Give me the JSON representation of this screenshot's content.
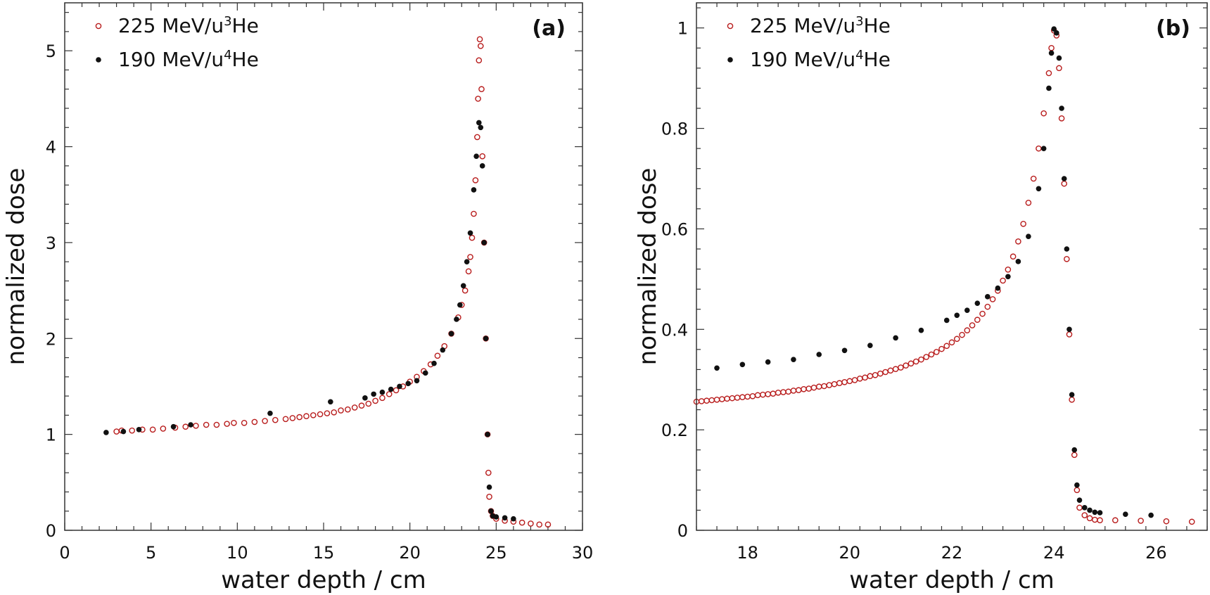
{
  "colors": {
    "he3": "#b81c1c",
    "he4": "#111111",
    "axis": "#333333"
  },
  "chart_data": [
    {
      "type": "scatter",
      "panel_label": "(a)",
      "xlabel": "water depth / cm",
      "ylabel": "normalized dose",
      "xlim": [
        0,
        30
      ],
      "ylim": [
        0,
        5.5
      ],
      "xticks": [
        0,
        5,
        10,
        15,
        20,
        25,
        30
      ],
      "yticks": [
        0,
        1,
        2,
        3,
        4,
        5
      ],
      "grid": false,
      "legend_position": "top-left",
      "legend": [
        {
          "label_main": "225 MeV/u",
          "label_sup": "3",
          "label_tail": "He",
          "marker": "open-circle"
        },
        {
          "label_main": "190 MeV/u",
          "label_sup": "4",
          "label_tail": "He",
          "marker": "filled-circle"
        }
      ],
      "series": [
        {
          "name": "225 MeV/u 3He",
          "marker": "open-circle",
          "points": [
            [
              3.0,
              1.03
            ],
            [
              3.3,
              1.04
            ],
            [
              3.9,
              1.04
            ],
            [
              4.5,
              1.05
            ],
            [
              5.1,
              1.05
            ],
            [
              5.7,
              1.06
            ],
            [
              6.4,
              1.07
            ],
            [
              7.0,
              1.08
            ],
            [
              7.6,
              1.09
            ],
            [
              8.2,
              1.1
            ],
            [
              8.8,
              1.1
            ],
            [
              9.4,
              1.11
            ],
            [
              9.8,
              1.12
            ],
            [
              10.4,
              1.12
            ],
            [
              11.0,
              1.13
            ],
            [
              11.6,
              1.14
            ],
            [
              12.2,
              1.15
            ],
            [
              12.8,
              1.16
            ],
            [
              13.2,
              1.17
            ],
            [
              13.6,
              1.18
            ],
            [
              14.0,
              1.19
            ],
            [
              14.4,
              1.2
            ],
            [
              14.8,
              1.21
            ],
            [
              15.2,
              1.22
            ],
            [
              15.6,
              1.23
            ],
            [
              16.0,
              1.25
            ],
            [
              16.4,
              1.26
            ],
            [
              16.8,
              1.28
            ],
            [
              17.2,
              1.3
            ],
            [
              17.6,
              1.32
            ],
            [
              18.0,
              1.35
            ],
            [
              18.4,
              1.38
            ],
            [
              18.8,
              1.42
            ],
            [
              19.2,
              1.46
            ],
            [
              19.6,
              1.5
            ],
            [
              20.0,
              1.55
            ],
            [
              20.4,
              1.6
            ],
            [
              20.8,
              1.66
            ],
            [
              21.2,
              1.73
            ],
            [
              21.6,
              1.82
            ],
            [
              22.0,
              1.92
            ],
            [
              22.4,
              2.05
            ],
            [
              22.8,
              2.22
            ],
            [
              23.0,
              2.35
            ],
            [
              23.2,
              2.5
            ],
            [
              23.4,
              2.7
            ],
            [
              23.5,
              2.85
            ],
            [
              23.6,
              3.05
            ],
            [
              23.7,
              3.3
            ],
            [
              23.8,
              3.65
            ],
            [
              23.9,
              4.1
            ],
            [
              23.95,
              4.5
            ],
            [
              24.0,
              4.9
            ],
            [
              24.05,
              5.12
            ],
            [
              24.1,
              5.05
            ],
            [
              24.15,
              4.6
            ],
            [
              24.2,
              3.9
            ],
            [
              24.3,
              3.0
            ],
            [
              24.4,
              2.0
            ],
            [
              24.5,
              1.0
            ],
            [
              24.55,
              0.6
            ],
            [
              24.6,
              0.35
            ],
            [
              24.7,
              0.2
            ],
            [
              24.8,
              0.15
            ],
            [
              25.0,
              0.12
            ],
            [
              25.5,
              0.1
            ],
            [
              26.0,
              0.09
            ],
            [
              26.5,
              0.08
            ],
            [
              27.0,
              0.07
            ],
            [
              27.5,
              0.06
            ],
            [
              28.0,
              0.06
            ]
          ]
        },
        {
          "name": "190 MeV/u 4He",
          "marker": "filled-circle",
          "points": [
            [
              2.4,
              1.02
            ],
            [
              3.4,
              1.03
            ],
            [
              4.3,
              1.05
            ],
            [
              6.3,
              1.08
            ],
            [
              7.3,
              1.1
            ],
            [
              11.9,
              1.22
            ],
            [
              15.4,
              1.34
            ],
            [
              17.4,
              1.38
            ],
            [
              17.9,
              1.42
            ],
            [
              18.4,
              1.44
            ],
            [
              18.9,
              1.47
            ],
            [
              19.4,
              1.5
            ],
            [
              19.9,
              1.53
            ],
            [
              20.4,
              1.56
            ],
            [
              20.9,
              1.64
            ],
            [
              21.4,
              1.74
            ],
            [
              21.9,
              1.88
            ],
            [
              22.4,
              2.05
            ],
            [
              22.7,
              2.2
            ],
            [
              22.9,
              2.35
            ],
            [
              23.1,
              2.55
            ],
            [
              23.3,
              2.8
            ],
            [
              23.5,
              3.1
            ],
            [
              23.7,
              3.55
            ],
            [
              23.85,
              3.9
            ],
            [
              24.0,
              4.25
            ],
            [
              24.1,
              4.2
            ],
            [
              24.2,
              3.8
            ],
            [
              24.3,
              3.0
            ],
            [
              24.4,
              2.0
            ],
            [
              24.5,
              1.0
            ],
            [
              24.6,
              0.45
            ],
            [
              24.7,
              0.2
            ],
            [
              24.8,
              0.15
            ],
            [
              25.0,
              0.14
            ],
            [
              25.5,
              0.13
            ],
            [
              26.0,
              0.12
            ]
          ]
        }
      ]
    },
    {
      "type": "scatter",
      "panel_label": "(b)",
      "xlabel": "water depth / cm",
      "ylabel": "normalized dose",
      "xlim": [
        17,
        27
      ],
      "ylim": [
        0,
        1.05
      ],
      "xticks": [
        18,
        20,
        22,
        24,
        26
      ],
      "yticks": [
        0,
        0.2,
        0.4,
        0.6,
        0.8,
        1
      ],
      "grid": false,
      "legend_position": "top-left",
      "legend": [
        {
          "label_main": "225 MeV/u",
          "label_sup": "3",
          "label_tail": "He",
          "marker": "open-circle"
        },
        {
          "label_main": "190 MeV/u",
          "label_sup": "4",
          "label_tail": "He",
          "marker": "filled-circle"
        }
      ],
      "series": [
        {
          "name": "225 MeV/u 3He",
          "marker": "open-circle",
          "points": [
            [
              17.0,
              0.256
            ],
            [
              17.1,
              0.257
            ],
            [
              17.2,
              0.258
            ],
            [
              17.3,
              0.259
            ],
            [
              17.4,
              0.26
            ],
            [
              17.5,
              0.261
            ],
            [
              17.6,
              0.262
            ],
            [
              17.7,
              0.263
            ],
            [
              17.8,
              0.264
            ],
            [
              17.9,
              0.265
            ],
            [
              18.0,
              0.266
            ],
            [
              18.1,
              0.267
            ],
            [
              18.2,
              0.269
            ],
            [
              18.3,
              0.27
            ],
            [
              18.4,
              0.271
            ],
            [
              18.5,
              0.272
            ],
            [
              18.6,
              0.274
            ],
            [
              18.7,
              0.275
            ],
            [
              18.8,
              0.276
            ],
            [
              18.9,
              0.278
            ],
            [
              19.0,
              0.279
            ],
            [
              19.1,
              0.281
            ],
            [
              19.2,
              0.282
            ],
            [
              19.3,
              0.284
            ],
            [
              19.4,
              0.286
            ],
            [
              19.5,
              0.287
            ],
            [
              19.6,
              0.289
            ],
            [
              19.7,
              0.291
            ],
            [
              19.8,
              0.293
            ],
            [
              19.9,
              0.295
            ],
            [
              20.0,
              0.297
            ],
            [
              20.1,
              0.299
            ],
            [
              20.2,
              0.302
            ],
            [
              20.3,
              0.304
            ],
            [
              20.4,
              0.307
            ],
            [
              20.5,
              0.309
            ],
            [
              20.6,
              0.312
            ],
            [
              20.7,
              0.315
            ],
            [
              20.8,
              0.318
            ],
            [
              20.9,
              0.321
            ],
            [
              21.0,
              0.324
            ],
            [
              21.1,
              0.328
            ],
            [
              21.2,
              0.332
            ],
            [
              21.3,
              0.336
            ],
            [
              21.4,
              0.34
            ],
            [
              21.5,
              0.345
            ],
            [
              21.6,
              0.35
            ],
            [
              21.7,
              0.355
            ],
            [
              21.8,
              0.361
            ],
            [
              21.9,
              0.367
            ],
            [
              22.0,
              0.374
            ],
            [
              22.1,
              0.381
            ],
            [
              22.2,
              0.389
            ],
            [
              22.3,
              0.398
            ],
            [
              22.4,
              0.408
            ],
            [
              22.5,
              0.419
            ],
            [
              22.6,
              0.431
            ],
            [
              22.7,
              0.445
            ],
            [
              22.8,
              0.46
            ],
            [
              22.9,
              0.477
            ],
            [
              23.0,
              0.497
            ],
            [
              23.1,
              0.519
            ],
            [
              23.2,
              0.545
            ],
            [
              23.3,
              0.575
            ],
            [
              23.4,
              0.61
            ],
            [
              23.5,
              0.652
            ],
            [
              23.6,
              0.7
            ],
            [
              23.7,
              0.76
            ],
            [
              23.8,
              0.83
            ],
            [
              23.9,
              0.91
            ],
            [
              23.95,
              0.96
            ],
            [
              24.0,
              0.995
            ],
            [
              24.05,
              0.985
            ],
            [
              24.1,
              0.92
            ],
            [
              24.15,
              0.82
            ],
            [
              24.2,
              0.69
            ],
            [
              24.25,
              0.54
            ],
            [
              24.3,
              0.39
            ],
            [
              24.35,
              0.26
            ],
            [
              24.4,
              0.15
            ],
            [
              24.45,
              0.08
            ],
            [
              24.5,
              0.045
            ],
            [
              24.6,
              0.03
            ],
            [
              24.7,
              0.024
            ],
            [
              24.8,
              0.021
            ],
            [
              24.9,
              0.02
            ],
            [
              25.2,
              0.02
            ],
            [
              25.7,
              0.019
            ],
            [
              26.2,
              0.018
            ],
            [
              26.7,
              0.017
            ]
          ]
        },
        {
          "name": "190 MeV/u 4He",
          "marker": "filled-circle",
          "points": [
            [
              17.4,
              0.323
            ],
            [
              17.9,
              0.33
            ],
            [
              18.4,
              0.335
            ],
            [
              18.9,
              0.34
            ],
            [
              19.4,
              0.35
            ],
            [
              19.9,
              0.358
            ],
            [
              20.4,
              0.368
            ],
            [
              20.9,
              0.383
            ],
            [
              21.4,
              0.398
            ],
            [
              21.9,
              0.418
            ],
            [
              22.1,
              0.428
            ],
            [
              22.3,
              0.438
            ],
            [
              22.5,
              0.452
            ],
            [
              22.7,
              0.465
            ],
            [
              22.9,
              0.482
            ],
            [
              23.1,
              0.505
            ],
            [
              23.3,
              0.535
            ],
            [
              23.5,
              0.585
            ],
            [
              23.7,
              0.68
            ],
            [
              23.8,
              0.76
            ],
            [
              23.9,
              0.88
            ],
            [
              23.95,
              0.95
            ],
            [
              24.0,
              0.998
            ],
            [
              24.05,
              0.99
            ],
            [
              24.1,
              0.94
            ],
            [
              24.15,
              0.84
            ],
            [
              24.2,
              0.7
            ],
            [
              24.25,
              0.56
            ],
            [
              24.3,
              0.4
            ],
            [
              24.35,
              0.27
            ],
            [
              24.4,
              0.16
            ],
            [
              24.45,
              0.09
            ],
            [
              24.5,
              0.06
            ],
            [
              24.6,
              0.045
            ],
            [
              24.7,
              0.04
            ],
            [
              24.8,
              0.036
            ],
            [
              24.9,
              0.035
            ],
            [
              25.4,
              0.032
            ],
            [
              25.9,
              0.03
            ]
          ]
        }
      ]
    }
  ]
}
